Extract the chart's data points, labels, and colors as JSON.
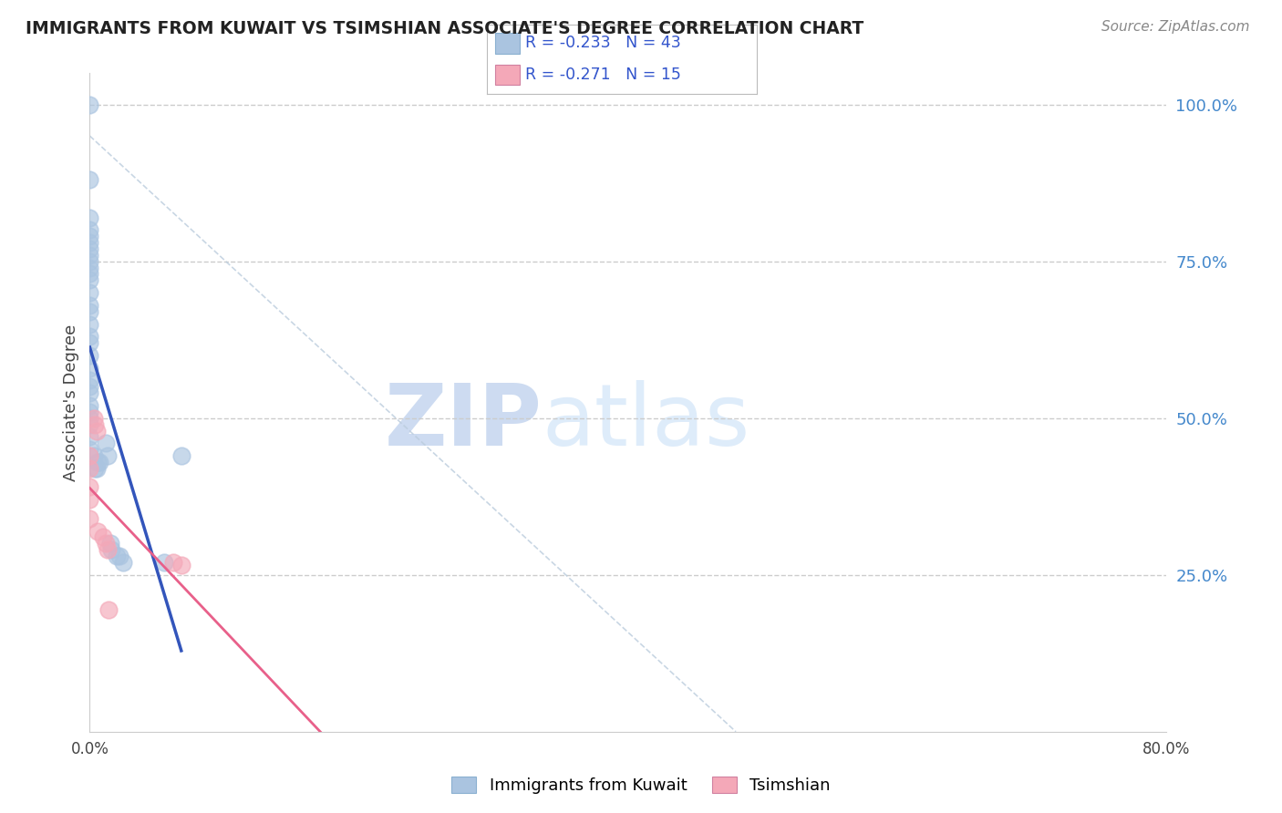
{
  "title": "IMMIGRANTS FROM KUWAIT VS TSIMSHIAN ASSOCIATE'S DEGREE CORRELATION CHART",
  "source": "Source: ZipAtlas.com",
  "ylabel": "Associate's Degree",
  "watermark_zip": "ZIP",
  "watermark_atlas": "atlas",
  "blue_label": "Immigrants from Kuwait",
  "pink_label": "Tsimshian",
  "blue_R": -0.233,
  "blue_N": 43,
  "pink_R": -0.271,
  "pink_N": 15,
  "blue_points_x": [
    0.0,
    0.0,
    0.0,
    0.0,
    0.0,
    0.0,
    0.0,
    0.0,
    0.0,
    0.0,
    0.0,
    0.0,
    0.0,
    0.0,
    0.0,
    0.0,
    0.0,
    0.0,
    0.0,
    0.0,
    0.0,
    0.0,
    0.0,
    0.0,
    0.0,
    0.0,
    0.0,
    0.0,
    0.0,
    0.003,
    0.004,
    0.005,
    0.006,
    0.007,
    0.012,
    0.013,
    0.015,
    0.016,
    0.02,
    0.022,
    0.025,
    0.055,
    0.068
  ],
  "blue_points_y": [
    1.0,
    0.88,
    0.82,
    0.8,
    0.79,
    0.78,
    0.77,
    0.76,
    0.75,
    0.74,
    0.73,
    0.72,
    0.7,
    0.68,
    0.67,
    0.65,
    0.63,
    0.62,
    0.6,
    0.58,
    0.56,
    0.55,
    0.54,
    0.52,
    0.51,
    0.5,
    0.49,
    0.47,
    0.45,
    0.44,
    0.42,
    0.42,
    0.43,
    0.43,
    0.46,
    0.44,
    0.3,
    0.29,
    0.28,
    0.28,
    0.27,
    0.27,
    0.44
  ],
  "pink_points_x": [
    0.0,
    0.0,
    0.0,
    0.0,
    0.0,
    0.003,
    0.004,
    0.005,
    0.006,
    0.01,
    0.012,
    0.013,
    0.014,
    0.062,
    0.068
  ],
  "pink_points_y": [
    0.44,
    0.42,
    0.39,
    0.37,
    0.34,
    0.5,
    0.49,
    0.48,
    0.32,
    0.31,
    0.3,
    0.29,
    0.195,
    0.27,
    0.265
  ],
  "xlim": [
    0.0,
    0.8
  ],
  "ylim": [
    0.0,
    1.05
  ],
  "ytick_vals": [
    0.0,
    0.25,
    0.5,
    0.75,
    1.0
  ],
  "yticklabels": [
    "",
    "25.0%",
    "50.0%",
    "75.0%",
    "100.0%"
  ],
  "background_color": "#ffffff",
  "grid_color": "#cccccc",
  "blue_scatter_color": "#aac4e0",
  "blue_line_color": "#3355bb",
  "pink_scatter_color": "#f4a8b8",
  "pink_line_color": "#e8608a",
  "diag_color": "#bbccdd",
  "title_color": "#222222",
  "source_color": "#888888",
  "tick_color": "#4488cc"
}
